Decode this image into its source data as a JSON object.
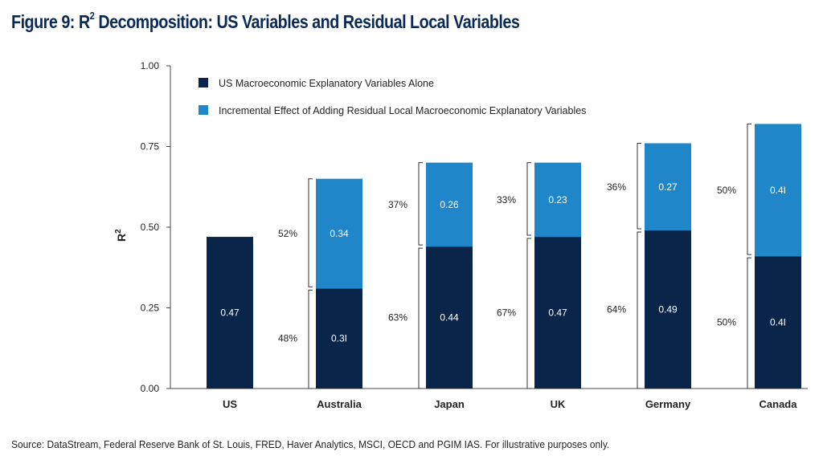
{
  "title": {
    "prefix": "Figure 9: R",
    "superscript": "2",
    "suffix": " Decomposition: US Variables and Residual Local Variables"
  },
  "source_text": "Source: DataStream, Federal Reserve Bank of St. Louis, FRED, Haver Analytics, MSCI, OECD and PGIM IAS. For illustrative purposes only.",
  "colors": {
    "us_alone": "#0a2549",
    "incremental": "#1f86c9",
    "title": "#0b2a55"
  },
  "chart_data": {
    "type": "bar",
    "stacked": true,
    "categories": [
      "US",
      "Australia",
      "Japan",
      "UK",
      "Germany",
      "Canada"
    ],
    "ylabel": "R",
    "ylabel_sup": "2",
    "ylim": [
      0,
      1.0
    ],
    "yticks": [
      "0.00",
      "0.25",
      "0.50",
      "0.75",
      "1.00"
    ],
    "legend_position": "top-left",
    "series": [
      {
        "name": "US Macroeconomic Explanatory Variables Alone",
        "values": [
          0.47,
          0.31,
          0.44,
          0.47,
          0.49,
          0.41
        ],
        "labels": [
          "0.47",
          "0.3I",
          "0.44",
          "0.47",
          "0.49",
          "0.4I"
        ],
        "shares": [
          "",
          "48%",
          "63%",
          "67%",
          "64%",
          "50%"
        ]
      },
      {
        "name": "Incremental Effect of Adding Residual Local Macroeconomic Explanatory Variables",
        "values": [
          0,
          0.34,
          0.26,
          0.23,
          0.27,
          0.41
        ],
        "labels": [
          "",
          "0.34",
          "0.26",
          "0.23",
          "0.27",
          "0.4I"
        ],
        "shares": [
          "",
          "52%",
          "37%",
          "33%",
          "36%",
          "50%"
        ]
      }
    ]
  }
}
